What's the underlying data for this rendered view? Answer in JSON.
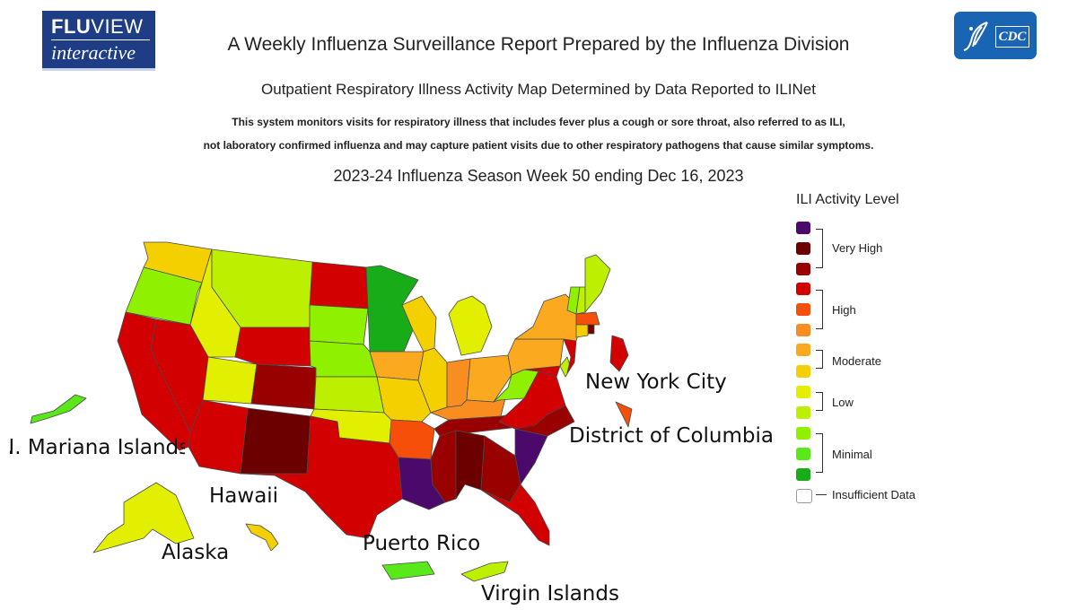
{
  "logos": {
    "fluview_line1_bold": "FLU",
    "fluview_line1_reg": "VIEW",
    "fluview_line2": "interactive",
    "cdc_text": "CDC"
  },
  "header": {
    "title": "A Weekly Influenza Surveillance Report Prepared by the Influenza Division",
    "subtitle": "Outpatient Respiratory Illness Activity Map Determined by Data Reported to ILINet",
    "desc_line1": "This system monitors visits for respiratory illness that includes fever plus a cough or sore throat, also referred to as ILI,",
    "desc_line2": "not laboratory confirmed influenza and may capture patient visits due to other respiratory pathogens that cause similar symptoms.",
    "week": "2023-24 Influenza Season Week 50 ending Dec 16, 2023"
  },
  "colors": {
    "13": "#4b0a6b",
    "12": "#6c0000",
    "11": "#990000",
    "10": "#d20000",
    "9": "#f54f0a",
    "8": "#f98d1f",
    "7": "#fbaa20",
    "6": "#f5d000",
    "5": "#e2ef00",
    "4": "#bcf000",
    "3": "#8ff000",
    "2": "#59e91a",
    "1": "#18ad18",
    "insufficient": "#ffffff"
  },
  "legend": {
    "title": "ILI Activity Level",
    "groups": [
      "Very High",
      "High",
      "Moderate",
      "Low",
      "Minimal",
      "Insufficient Data"
    ]
  },
  "labels": {
    "nyc": "New York City",
    "dc": "District of Columbia",
    "cnmi": "N. Mariana Islands",
    "hawaii": "Hawaii",
    "alaska": "Alaska",
    "pr": "Puerto Rico",
    "vi": "Virgin Islands"
  },
  "state_levels": {
    "WA": 6,
    "OR": 3,
    "CA": 10,
    "NV": 10,
    "ID": 5,
    "MT": 4,
    "WY": 10,
    "UT": 5,
    "AZ": 10,
    "CO": 11,
    "NM": 12,
    "ND": 10,
    "SD": 3,
    "NE": 3,
    "KS": 4,
    "OK": 5,
    "TX": 10,
    "MN": 1,
    "IA": 7,
    "MO": 6,
    "AR": 9,
    "LA": 13,
    "WI": 6,
    "IL": 6,
    "MI": 5,
    "IN": 8,
    "OH": 7,
    "KY": 8,
    "TN": 11,
    "MS": 11,
    "AL": 12,
    "GA": 11,
    "FL": 10,
    "SC": 13,
    "NC": 11,
    "VA": 10,
    "WV": 3,
    "MD": 10,
    "DE": 4,
    "NJ": 10,
    "PA": 7,
    "NY": 7,
    "CT": 6,
    "RI": 12,
    "MA": 9,
    "VT": 3,
    "NH": 4,
    "ME": 4,
    "AK": 5,
    "HI": 6,
    "PR": 2,
    "VI": 4,
    "CNMI": 2,
    "NYC": 10,
    "DC": 9
  },
  "state_names": {
    "WA": "Washington",
    "OR": "Oregon",
    "CA": "California",
    "NV": "Nevada",
    "ID": "Idaho",
    "MT": "Montana",
    "WY": "Wyoming",
    "UT": "Utah",
    "AZ": "Arizona",
    "CO": "Colorado",
    "NM": "New Mexico",
    "ND": "North Dakota",
    "SD": "South Dakota",
    "NE": "Nebraska",
    "KS": "Kansas",
    "OK": "Oklahoma",
    "TX": "Texas",
    "MN": "Minnesota",
    "IA": "Iowa",
    "MO": "Missouri",
    "AR": "Arkansas",
    "LA": "Louisiana",
    "WI": "Wisconsin",
    "IL": "Illinois",
    "MI": "Michigan",
    "IN": "Indiana",
    "OH": "Ohio",
    "KY": "Kentucky",
    "TN": "Tennessee",
    "MS": "Mississippi",
    "AL": "Alabama",
    "GA": "Georgia",
    "FL": "Florida",
    "SC": "South Carolina",
    "NC": "North Carolina",
    "VA": "Virginia",
    "WV": "West Virginia",
    "MD": "Maryland",
    "DE": "Delaware",
    "NJ": "New Jersey",
    "PA": "Pennsylvania",
    "NY": "New York",
    "CT": "Connecticut",
    "RI": "Rhode Island",
    "MA": "Massachusetts",
    "VT": "Vermont",
    "NH": "New Hampshire",
    "ME": "Maine",
    "AK": "Alaska",
    "HI": "Hawaii",
    "PR": "Puerto Rico",
    "VI": "Virgin Islands",
    "CNMI": "N. Mariana Islands",
    "NYC": "New York City",
    "DC": "District of Columbia"
  }
}
